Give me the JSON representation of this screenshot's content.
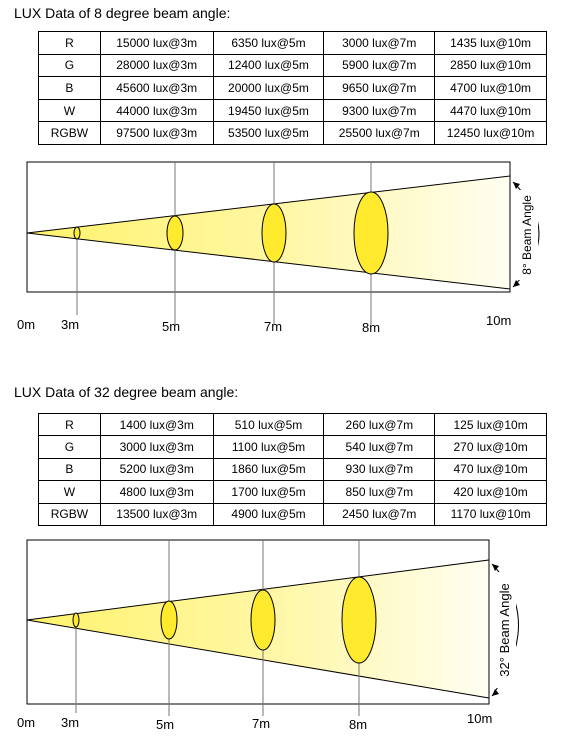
{
  "sections": [
    {
      "title": "LUX Data of 8 degree beam angle:",
      "rows": [
        [
          "R",
          "15000 lux@3m",
          "6350 lux@5m",
          "3000 lux@7m",
          "1435 lux@10m"
        ],
        [
          "G",
          "28000 lux@3m",
          "12400 lux@5m",
          "5900 lux@7m",
          "2850 lux@10m"
        ],
        [
          "B",
          "45600 lux@3m",
          "20000 lux@5m",
          "9650 lux@7m",
          "4700 lux@10m"
        ],
        [
          "W",
          "44000 lux@3m",
          "19450 lux@5m",
          "9300 lux@7m",
          "4470 lux@10m"
        ],
        [
          "RGBW",
          "97500 lux@3m",
          "53500 lux@5m",
          "25500 lux@7m",
          "12450 lux@10m"
        ]
      ],
      "beam_label": "8° Beam Angle",
      "distances": [
        "0m",
        "3m",
        "5m",
        "7m",
        "8m",
        "10m"
      ]
    },
    {
      "title": "LUX Data of 32 degree beam angle:",
      "rows": [
        [
          "R",
          "1400 lux@3m",
          "510 lux@5m",
          "260 lux@7m",
          "125 lux@10m"
        ],
        [
          "G",
          "3000 lux@3m",
          "1100 lux@5m",
          "540 lux@7m",
          "270 lux@10m"
        ],
        [
          "B",
          "5200 lux@3m",
          "1860 lux@5m",
          "930 lux@7m",
          "470 lux@10m"
        ],
        [
          "W",
          "4800 lux@3m",
          "1700 lux@5m",
          "850 lux@7m",
          "420 lux@10m"
        ],
        [
          "RGBW",
          "13500 lux@3m",
          "4900 lux@5m",
          "2450 lux@7m",
          "1170 lux@10m"
        ]
      ],
      "beam_label": "32° Beam Angle",
      "distances": [
        "0m",
        "3m",
        "5m",
        "7m",
        "8m",
        "10m"
      ]
    }
  ],
  "colors": {
    "beam_start": "#fff59a",
    "beam_end": "#fffde8",
    "ellipse": "#ffea2e",
    "stroke": "#000000",
    "axis_line": "#777777"
  }
}
